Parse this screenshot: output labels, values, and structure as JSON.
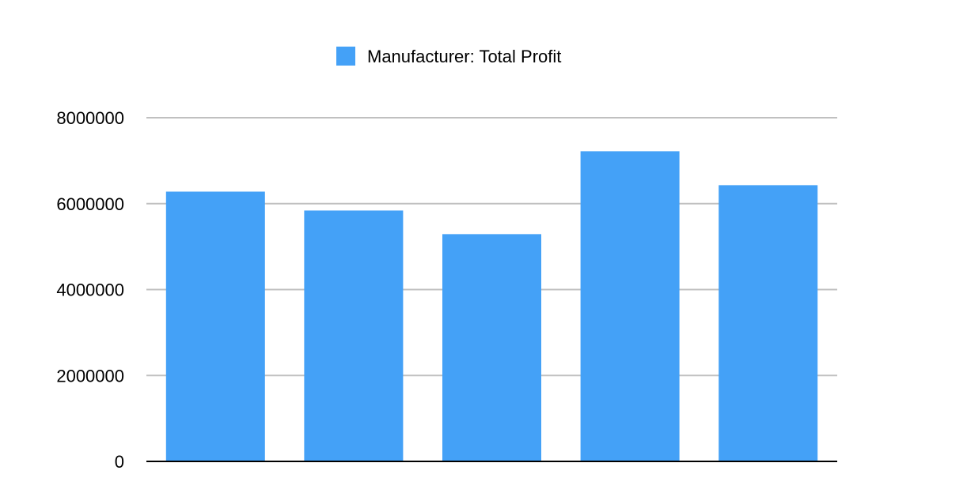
{
  "chart_data": {
    "type": "bar",
    "categories": [
      "",
      "",
      "",
      "",
      ""
    ],
    "series": [
      {
        "name": "Manufacturer: Total Profit",
        "color": "#44a1f7",
        "values": [
          6280000,
          5840000,
          5290000,
          7220000,
          6430000
        ]
      }
    ],
    "title": "",
    "xlabel": "",
    "ylabel": "",
    "ylim": [
      0,
      8000000
    ],
    "yticks": [
      "0",
      "2000000",
      "4000000",
      "6000000",
      "8000000"
    ],
    "grid": true,
    "legend_position": "top-center"
  },
  "colors": {
    "gridline": "#c0c0c0",
    "baseline": "#000000"
  }
}
